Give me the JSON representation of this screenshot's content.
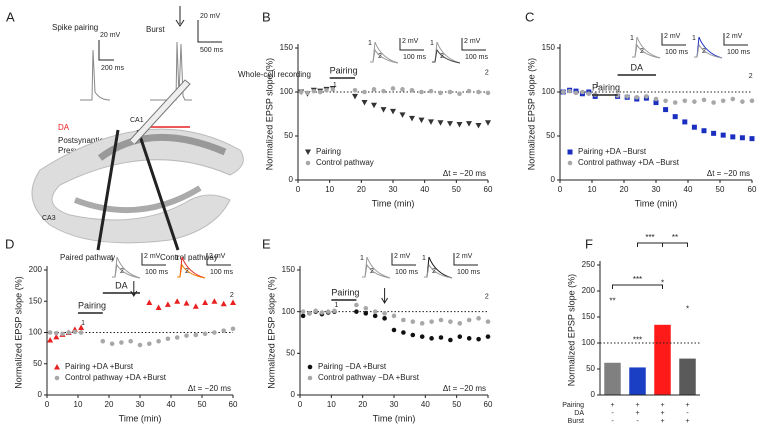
{
  "panel_a": {
    "label": "A",
    "spike_pairing": "Spike pairing",
    "pairing_scale": [
      "20 mV",
      "200 ms"
    ],
    "burst": "Burst",
    "burst_scale": [
      "20 mV",
      "500 ms"
    ],
    "da": "DA",
    "postsynaptic": "Postsynaptic",
    "presynaptic": "Presynaptic",
    "recording": "Whole-cell recording",
    "ca1": "CA1",
    "ca3": "CA3",
    "paired_pathway": "Paired pathway",
    "control_pathway": "Control pathway"
  },
  "chart_data": [
    {
      "type": "scatter",
      "label": "B",
      "xlabel": "Time (min)",
      "ylabel": "Normalized EPSP slope (%)",
      "xlim": [
        0,
        60
      ],
      "ylim": [
        0,
        150
      ],
      "xticks": [
        0,
        10,
        20,
        30,
        40,
        50,
        60
      ],
      "yticks": [
        0,
        50,
        100,
        150
      ],
      "ref_line": 100,
      "legend": "lower left",
      "x": [
        1,
        3,
        5,
        7,
        9,
        11,
        18,
        21,
        24,
        27,
        30,
        33,
        36,
        39,
        42,
        45,
        48,
        51,
        54,
        57,
        60
      ],
      "series": [
        {
          "name": "Pairing",
          "color": "#333333",
          "marker": "triangle-down",
          "values": [
            100,
            98,
            102,
            101,
            103,
            104,
            95,
            88,
            85,
            80,
            78,
            74,
            70,
            68,
            66,
            65,
            64,
            63,
            64,
            62,
            65
          ]
        },
        {
          "name": "Control pathway",
          "color": "#a8a8a8",
          "marker": "circle",
          "values": [
            100,
            99,
            101,
            100,
            102,
            103,
            102,
            100,
            103,
            101,
            104,
            103,
            102,
            100,
            101,
            99,
            100,
            98,
            101,
            100,
            99
          ]
        }
      ],
      "pairing_label": "Pairing",
      "start_label": "1",
      "end_label": "2",
      "dt_label": "Δt = −20 ms",
      "insets": [
        {
          "traces": [
            "1",
            "2"
          ],
          "scale": [
            "2 mV",
            "100 ms"
          ]
        },
        {
          "traces": [
            "1",
            "2"
          ],
          "scale": [
            "2 mV",
            "100 ms"
          ]
        }
      ]
    },
    {
      "type": "scatter",
      "label": "C",
      "xlabel": "Time (min)",
      "ylabel": "Normalized EPSP slope (%)",
      "xlim": [
        0,
        60
      ],
      "ylim": [
        0,
        150
      ],
      "xticks": [
        0,
        10,
        20,
        30,
        40,
        50,
        60
      ],
      "yticks": [
        0,
        50,
        100,
        150
      ],
      "ref_line": 100,
      "legend": "lower left",
      "x": [
        1,
        3,
        5,
        7,
        9,
        11,
        18,
        21,
        24,
        27,
        30,
        33,
        36,
        39,
        42,
        45,
        48,
        51,
        54,
        57,
        60
      ],
      "series": [
        {
          "name": "Pairing +DA −Burst",
          "color": "#1a2fc0",
          "marker": "square",
          "values": [
            100,
            102,
            101,
            98,
            100,
            95,
            95,
            94,
            92,
            93,
            88,
            80,
            72,
            66,
            60,
            56,
            53,
            51,
            49,
            48,
            47
          ]
        },
        {
          "name": "Control pathway +DA −Burst",
          "color": "#a8a8a8",
          "marker": "circle",
          "values": [
            100,
            101,
            99,
            100,
            98,
            97,
            96,
            95,
            94,
            95,
            92,
            90,
            88,
            90,
            89,
            91,
            88,
            90,
            92,
            89,
            90
          ]
        }
      ],
      "pairing_label": "Pairing",
      "da_label": "DA",
      "start_label": "1",
      "end_label": "2",
      "dt_label": "Δt = −20 ms",
      "insets": [
        {
          "traces": [
            "1",
            "2"
          ],
          "scale": [
            "2 mV",
            "100 ms"
          ]
        },
        {
          "traces": [
            "1",
            "2"
          ],
          "scale": [
            "2 mV",
            "100 ms"
          ]
        }
      ]
    },
    {
      "type": "scatter",
      "label": "D",
      "xlabel": "Time (min)",
      "ylabel": "Normalized EPSP slope (%)",
      "xlim": [
        0,
        60
      ],
      "ylim": [
        0,
        200
      ],
      "xticks": [
        0,
        10,
        20,
        30,
        40,
        50,
        60
      ],
      "yticks": [
        0,
        50,
        100,
        150,
        200
      ],
      "ref_line": 100,
      "legend": "lower left",
      "x": [
        1,
        3,
        5,
        7,
        9,
        11,
        18,
        21,
        24,
        27,
        30,
        33,
        36,
        39,
        42,
        45,
        48,
        51,
        54,
        57,
        60
      ],
      "series": [
        {
          "name": "Pairing +DA +Burst",
          "color": "#e82020",
          "marker": "triangle-up",
          "values": [
            88,
            93,
            97,
            100,
            105,
            108,
            null,
            null,
            null,
            null,
            null,
            148,
            140,
            145,
            150,
            147,
            142,
            148,
            150,
            146,
            148
          ]
        },
        {
          "name": "Control pathway +DA +Burst",
          "color": "#a8a8a8",
          "marker": "circle",
          "values": [
            100,
            99,
            98,
            100,
            101,
            100,
            86,
            82,
            84,
            86,
            80,
            82,
            86,
            90,
            92,
            95,
            96,
            98,
            100,
            103,
            106
          ]
        }
      ],
      "pairing_label": "Pairing",
      "da_label": "DA",
      "start_label": "1",
      "end_label": "2",
      "dt_label": "Δt = −20 ms",
      "insets": [
        {
          "traces": [
            "1",
            "2"
          ],
          "scale": [
            "2 mV",
            "100 ms"
          ]
        },
        {
          "traces": [
            "1",
            "2"
          ],
          "scale": [
            "2 mV",
            "100 ms"
          ]
        }
      ]
    },
    {
      "type": "scatter",
      "label": "E",
      "xlabel": "Time (min)",
      "ylabel": "Normalized EPSP slope (%)",
      "xlim": [
        0,
        60
      ],
      "ylim": [
        0,
        150
      ],
      "xticks": [
        0,
        10,
        20,
        30,
        40,
        50,
        60
      ],
      "yticks": [
        0,
        50,
        100,
        150
      ],
      "ref_line": 100,
      "legend": "lower left",
      "x": [
        1,
        3,
        5,
        7,
        9,
        11,
        18,
        21,
        24,
        27,
        30,
        33,
        36,
        39,
        42,
        45,
        48,
        51,
        54,
        57,
        60
      ],
      "series": [
        {
          "name": "Pairing  −DA +Burst",
          "color": "#111111",
          "marker": "circle",
          "values": [
            95,
            98,
            100,
            97,
            99,
            100,
            100,
            98,
            95,
            92,
            78,
            75,
            72,
            70,
            68,
            69,
            66,
            70,
            68,
            67,
            70
          ]
        },
        {
          "name": "Control pathway  −DA +Burst",
          "color": "#a8a8a8",
          "marker": "circle",
          "values": [
            100,
            98,
            101,
            99,
            100,
            101,
            108,
            104,
            100,
            98,
            95,
            90,
            88,
            86,
            88,
            90,
            88,
            86,
            90,
            92,
            88
          ]
        }
      ],
      "pairing_label": "Pairing",
      "start_label": "1",
      "end_label": "2",
      "dt_label": "Δt = −20 ms",
      "insets": [
        {
          "traces": [
            "1",
            "2"
          ],
          "scale": [
            "2 mV",
            "100 ms"
          ]
        },
        {
          "traces": [
            "1",
            "2"
          ],
          "scale": [
            "2 mV",
            "100 ms"
          ]
        }
      ]
    },
    {
      "type": "bar",
      "label": "F",
      "ylabel": "Normalized EPSP slope (%)",
      "ylim": [
        0,
        250
      ],
      "yticks": [
        0,
        50,
        100,
        150,
        200,
        250
      ],
      "ref_line": 100,
      "values": [
        62,
        53,
        135,
        70
      ],
      "colors": [
        "#808080",
        "#1a3fc4",
        "#ff1a1a",
        "#5a5a5a"
      ],
      "bar_stars": [
        "**",
        "***",
        "*",
        "*"
      ],
      "significance": [
        "***",
        "**",
        "***"
      ],
      "row_labels": [
        "Pairing",
        "DA",
        "Burst"
      ],
      "conditions": [
        [
          "+",
          "+",
          "+",
          "+"
        ],
        [
          "-",
          "+",
          "+",
          "-"
        ],
        [
          "-",
          "-",
          "+",
          "+"
        ]
      ]
    }
  ]
}
